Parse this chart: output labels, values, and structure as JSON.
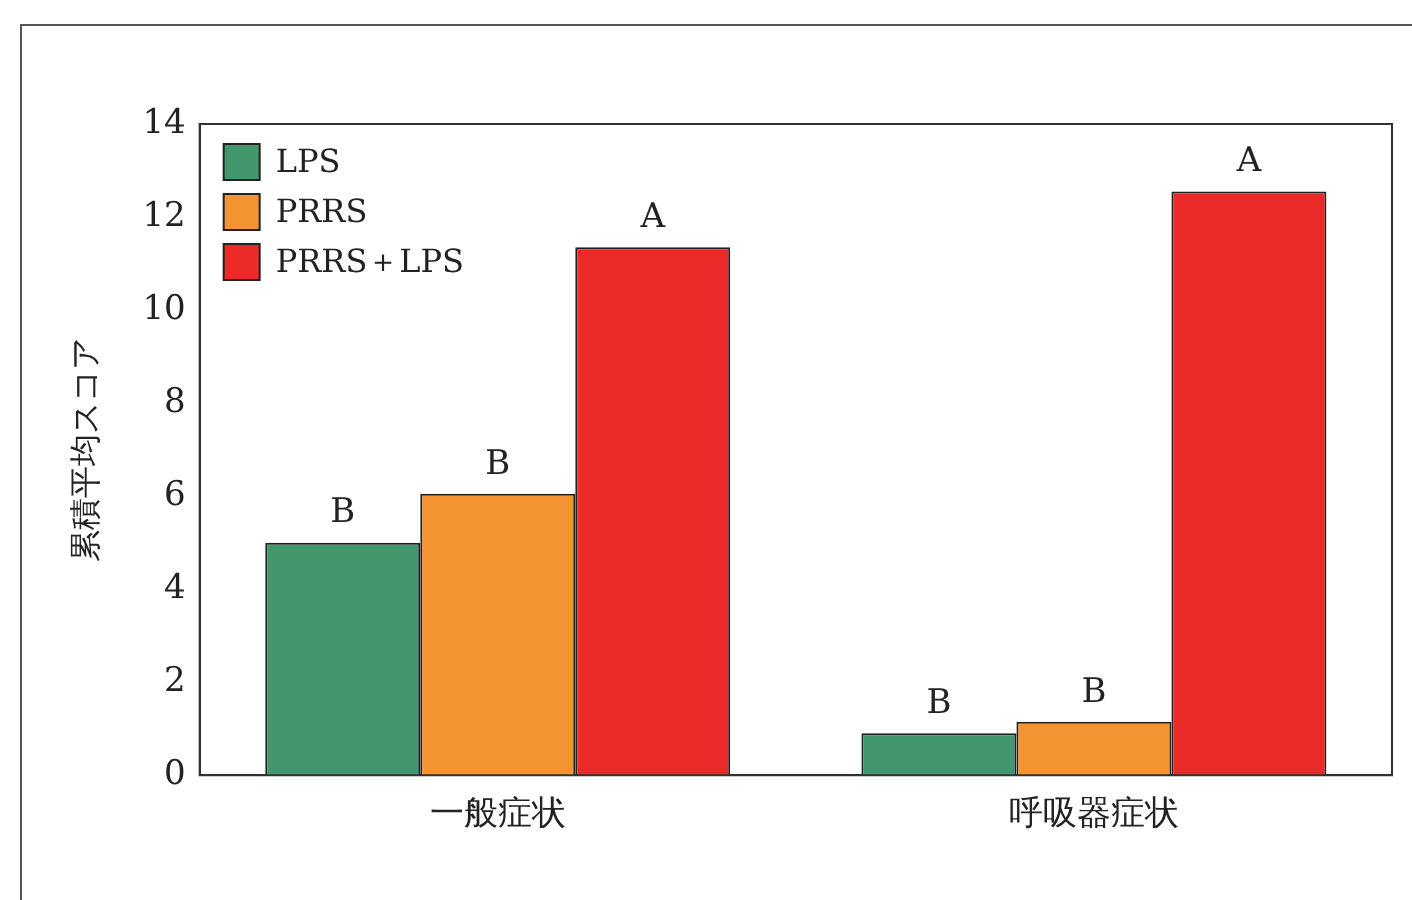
{
  "chart_data": {
    "type": "bar",
    "ylabel": "累積平均スコア",
    "categories": [
      "一般症状",
      "呼吸器症状"
    ],
    "series": [
      {
        "name": "LPS",
        "color": "#42986c",
        "values": [
          5.0,
          0.9
        ],
        "value_labels": [
          "B",
          "B"
        ]
      },
      {
        "name": "PRRS",
        "color": "#f49331",
        "values": [
          6.05,
          1.15
        ],
        "value_labels": [
          "B",
          "B"
        ]
      },
      {
        "name": "PRRS＋LPS",
        "color": "#ea2b29",
        "values": [
          11.35,
          12.55
        ],
        "value_labels": [
          "A",
          "A"
        ]
      }
    ],
    "ylim": [
      0,
      14
    ],
    "yticks": [
      0,
      2,
      4,
      6,
      8,
      10,
      12,
      14
    ],
    "grid": false,
    "legend": "top left"
  }
}
